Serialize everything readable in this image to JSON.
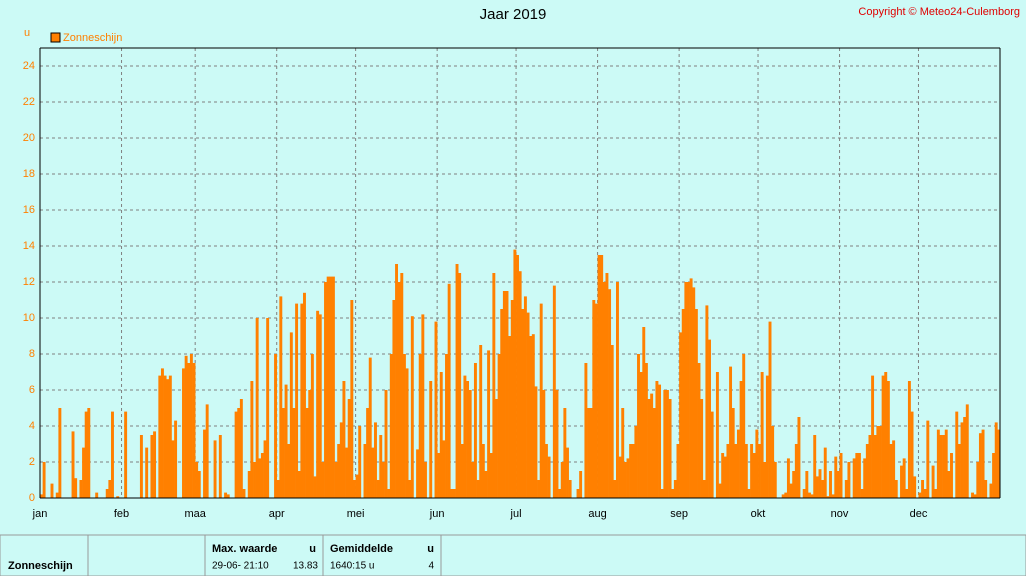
{
  "chart_data": {
    "type": "bar",
    "title": "Jaar 2019",
    "copyright": "Copyright © Meteo24-Culemborg",
    "y_label": "u",
    "categories": [
      "jan",
      null,
      null,
      null,
      null,
      null,
      null,
      null,
      null,
      null,
      null,
      null,
      null,
      null,
      null,
      null,
      null,
      null,
      null,
      null,
      null,
      null,
      null,
      null,
      null,
      null,
      null,
      null,
      null,
      null,
      null,
      "feb",
      null,
      null,
      null,
      null,
      null,
      null,
      null,
      null,
      null,
      null,
      null,
      null,
      null,
      null,
      null,
      null,
      null,
      null,
      null,
      null,
      null,
      null,
      null,
      null,
      null,
      null,
      null,
      "maa",
      null,
      null,
      null,
      null,
      null,
      null,
      null,
      null,
      null,
      null,
      null,
      null,
      null,
      null,
      null,
      null,
      null,
      null,
      null,
      null,
      null,
      null,
      null,
      null,
      null,
      null,
      null,
      null,
      null,
      null,
      "apr",
      null,
      null,
      null,
      null,
      null,
      null,
      null,
      null,
      null,
      null,
      null,
      null,
      null,
      null,
      null,
      null,
      null,
      null,
      null,
      null,
      null,
      null,
      null,
      null,
      null,
      null,
      null,
      null,
      null,
      "mei",
      null,
      null,
      null,
      null,
      null,
      null,
      null,
      null,
      null,
      null,
      null,
      null,
      null,
      null,
      null,
      null,
      null,
      null,
      null,
      null,
      null,
      null,
      null,
      null,
      null,
      null,
      null,
      null,
      null,
      null,
      "jun",
      null,
      null,
      null,
      null,
      null,
      null,
      null,
      null,
      null,
      null,
      null,
      null,
      null,
      null,
      null,
      null,
      null,
      null,
      null,
      null,
      null,
      null,
      null,
      null,
      null,
      null,
      null,
      null,
      null,
      "jul",
      null,
      null,
      null,
      null,
      null,
      null,
      null,
      null,
      null,
      null,
      null,
      null,
      null,
      null,
      null,
      null,
      null,
      null,
      null,
      null,
      null,
      null,
      null,
      null,
      null,
      null,
      null,
      null,
      null,
      null,
      "aug",
      null,
      null,
      null,
      null,
      null,
      null,
      null,
      null,
      null,
      null,
      null,
      null,
      null,
      null,
      null,
      null,
      null,
      null,
      null,
      null,
      null,
      null,
      null,
      null,
      null,
      null,
      null,
      null,
      null,
      null,
      "sep",
      null,
      null,
      null,
      null,
      null,
      null,
      null,
      null,
      null,
      null,
      null,
      null,
      null,
      null,
      null,
      null,
      null,
      null,
      null,
      null,
      null,
      null,
      null,
      null,
      null,
      null,
      null,
      null,
      null,
      "okt",
      null,
      null,
      null,
      null,
      null,
      null,
      null,
      null,
      null,
      null,
      null,
      null,
      null,
      null,
      null,
      null,
      null,
      null,
      null,
      null,
      null,
      null,
      null,
      null,
      null,
      null,
      null,
      null,
      null,
      null,
      "nov",
      null,
      null,
      null,
      null,
      null,
      null,
      null,
      null,
      null,
      null,
      null,
      null,
      null,
      null,
      null,
      null,
      null,
      null,
      null,
      null,
      null,
      null,
      null,
      null,
      null,
      null,
      null,
      null,
      null,
      "dec",
      null,
      null,
      null,
      null,
      null,
      null,
      null,
      null,
      null,
      null,
      null,
      null,
      null,
      null,
      null,
      null,
      null,
      null,
      null,
      null,
      null,
      null,
      null,
      null,
      null,
      null,
      null,
      null,
      null,
      null
    ],
    "series": [
      {
        "name": "Zonneschijn",
        "color": "#ff8000",
        "values": [
          0.2,
          2,
          0,
          0,
          0.8,
          0,
          0.3,
          5,
          0,
          0,
          0,
          0,
          3.7,
          1.1,
          0,
          1,
          2.8,
          4.8,
          5,
          0,
          0,
          0.3,
          0,
          0,
          0,
          0.5,
          1,
          4.8,
          0,
          0.1,
          0,
          0,
          4.8,
          0,
          0,
          0,
          0,
          0,
          3.5,
          0,
          2.8,
          0,
          3.5,
          3.7,
          0,
          6.8,
          7.2,
          6.8,
          6.6,
          6.8,
          3.2,
          4.3,
          0,
          0,
          7.2,
          7.9,
          7.5,
          8,
          7.5,
          2,
          1.5,
          0,
          3.8,
          5.2,
          0,
          0,
          3.2,
          0,
          3.5,
          0,
          0.3,
          0.2,
          0,
          0,
          4.8,
          5,
          5.5,
          0.5,
          0,
          1.5,
          6.5,
          2,
          10,
          2.2,
          2.5,
          3.2,
          10,
          0,
          0,
          8,
          1,
          11.2,
          5,
          6.3,
          3,
          9.2,
          5,
          10.8,
          1.5,
          10.8,
          11.4,
          5,
          6,
          8,
          1.2,
          10.4,
          10.2,
          2,
          12,
          12.3,
          12.3,
          12.3,
          2,
          3,
          4.2,
          6.5,
          2.8,
          5.5,
          11,
          1,
          1.3,
          4,
          0,
          3,
          5,
          7.8,
          2.8,
          4.2,
          1,
          3.5,
          2,
          6,
          0.5,
          8,
          11,
          13,
          12,
          12.5,
          8,
          7.2,
          1,
          10.1,
          0,
          2.7,
          8,
          10.2,
          2,
          0,
          6.5,
          0,
          9.8,
          2.5,
          7,
          3.2,
          8,
          11.9,
          0.5,
          0.5,
          13,
          12.5,
          3,
          6.8,
          6.5,
          6,
          2,
          7.5,
          1,
          8.5,
          3,
          1.5,
          8.2,
          2.5,
          12.5,
          5.5,
          8,
          10.5,
          11.5,
          11.5,
          9,
          11,
          13.8,
          13.5,
          12.6,
          10.5,
          11.2,
          10.3,
          9,
          9.1,
          6.2,
          1,
          10.8,
          6,
          3,
          2.3,
          0,
          11.8,
          6,
          0.5,
          2,
          5,
          2.8,
          1,
          0,
          0,
          0.5,
          1.5,
          0,
          7.5,
          5,
          5,
          11,
          10.8,
          13.5,
          13.5,
          12,
          12.5,
          11.6,
          8.5,
          1,
          12,
          2.3,
          5,
          2,
          2.2,
          3,
          3,
          4,
          8,
          7,
          9.5,
          7.5,
          5.5,
          5.8,
          5,
          6.5,
          6.3,
          0.5,
          6,
          6,
          5.5,
          0.5,
          1,
          3,
          9.2,
          10.5,
          12,
          12,
          12.2,
          11.7,
          10.5,
          7.5,
          5.5,
          1,
          10.7,
          8.8,
          4.8,
          0,
          7,
          0.8,
          2.5,
          2.3,
          3,
          7.3,
          5,
          3,
          3.8,
          6.5,
          8,
          3,
          0.5,
          3,
          2.5,
          3.8,
          3,
          7,
          2,
          6.8,
          9.8,
          4,
          2,
          0,
          0,
          0.2,
          0.3,
          2.2,
          0.8,
          1.5,
          3,
          4.5,
          0,
          0.5,
          1.5,
          0.3,
          0.2,
          3.5,
          1.2,
          1.6,
          1,
          2.8,
          0.1,
          1.5,
          0.2,
          2.3,
          1.5,
          2.5,
          0,
          1,
          2,
          0,
          2.2,
          2.5,
          2.5,
          0.5,
          2.2,
          3,
          3.5,
          6.8,
          3.5,
          4,
          4,
          6.8,
          7,
          6.5,
          3,
          3.2,
          1,
          0,
          1.8,
          2.2,
          0.5,
          6.5,
          4.8,
          1.2,
          0,
          0.3,
          1,
          0.5,
          4.3,
          0,
          1.8,
          0.5,
          3.8,
          3.5,
          3.5,
          3.8,
          1.5,
          2.5,
          0,
          4.8,
          3,
          4.2,
          4.5,
          5.2,
          0,
          0.3,
          0.2,
          2,
          3.6,
          3.8,
          1,
          0,
          0.8,
          2.5,
          4.2,
          3.8
        ]
      }
    ],
    "ylim": [
      0,
      25
    ],
    "yticks": [
      0,
      2,
      4,
      6,
      8,
      10,
      12,
      14,
      16,
      18,
      20,
      22,
      24
    ],
    "grid": true
  },
  "footer": {
    "label": "Zonneschijn",
    "max": {
      "header": "Max. waarde",
      "unit": "u",
      "time": "29-06-  21:10",
      "value": 13.83
    },
    "avg": {
      "header": "Gemiddelde",
      "unit": "u",
      "total": "1640:15 u",
      "value": 4
    }
  }
}
